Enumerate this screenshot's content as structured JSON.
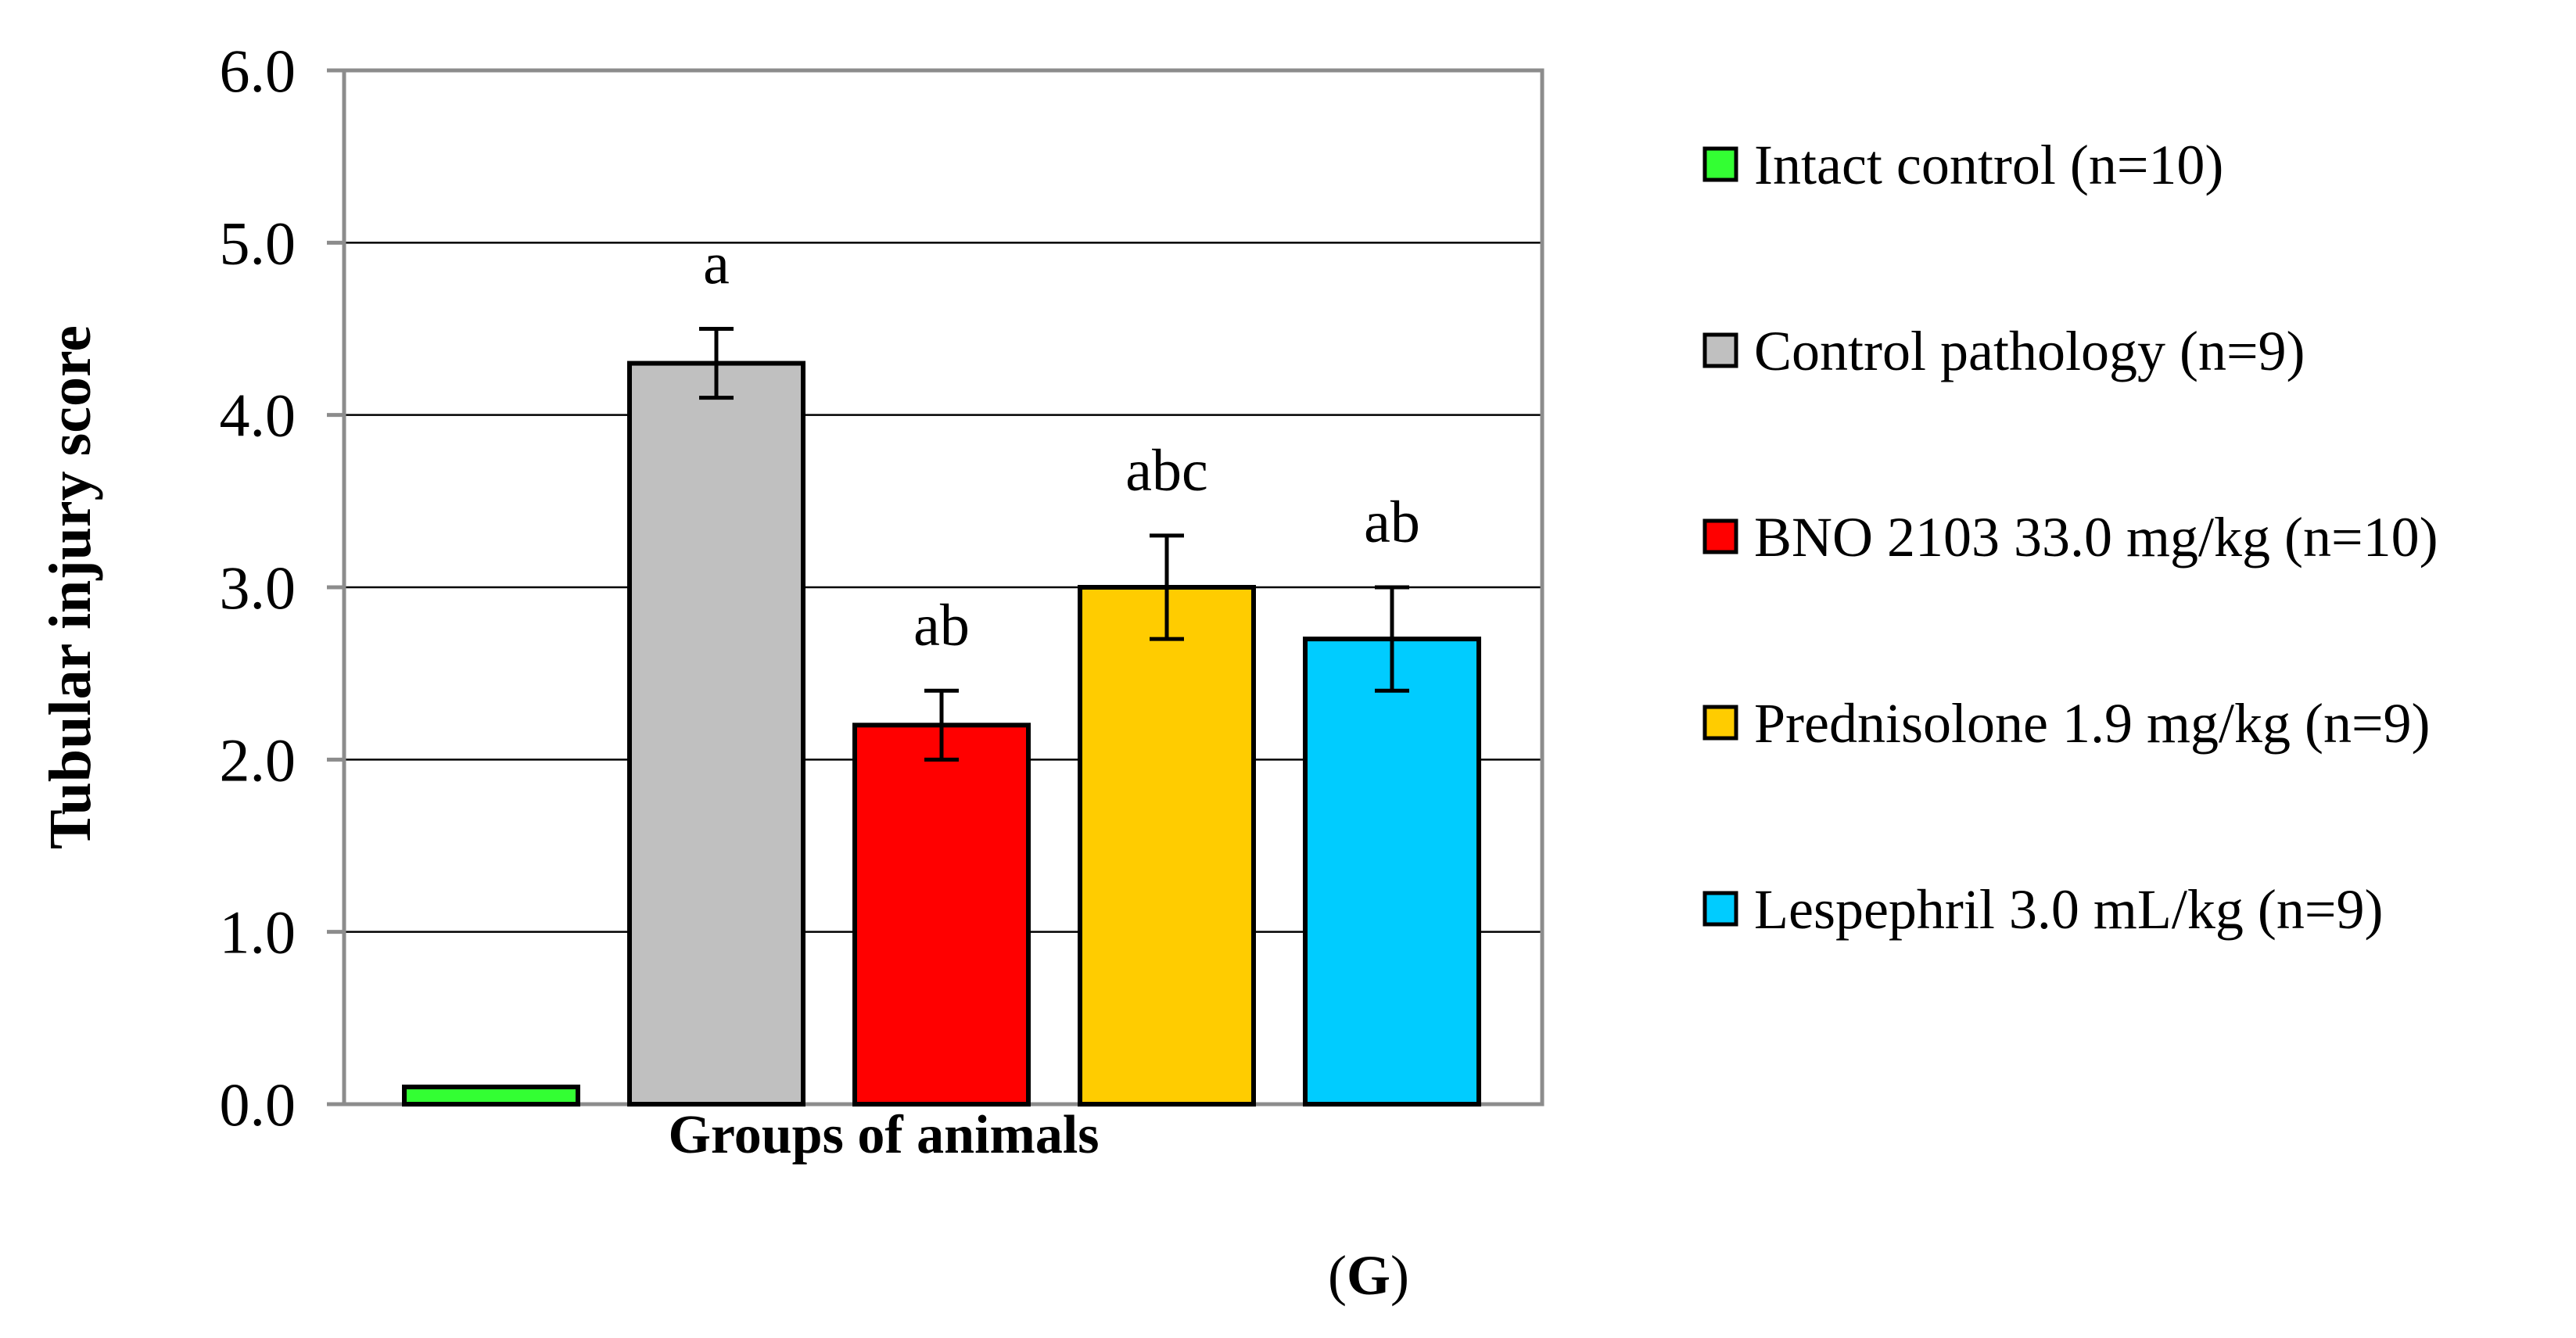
{
  "chart_data": {
    "type": "bar",
    "title": "",
    "xlabel": "Groups of animals",
    "ylabel": "Tubular injury score",
    "ylim": [
      0,
      6
    ],
    "yticks": [
      "0.0",
      "1.0",
      "2.0",
      "3.0",
      "4.0",
      "5.0",
      "6.0"
    ],
    "grid": true,
    "legend_position": "right",
    "series": [
      {
        "name": "Intact control (n=10)",
        "value": 0.1,
        "error": null,
        "annotation": "",
        "color": "#33ff33"
      },
      {
        "name": "Control pathology (n=9)",
        "value": 4.3,
        "error": 0.2,
        "annotation": "a",
        "color": "#c0c0c0"
      },
      {
        "name": "BNO 2103 33.0 mg/kg (n=10)",
        "value": 2.2,
        "error": 0.2,
        "annotation": "ab",
        "color": "#ff0000"
      },
      {
        "name": "Prednisolone 1.9 mg/kg (n=9)",
        "value": 3.0,
        "error": 0.3,
        "annotation": "abc",
        "color": "#ffcc00"
      },
      {
        "name": "Lespephril 3.0 mL/kg (n=9)",
        "value": 2.7,
        "error": 0.3,
        "annotation": "ab",
        "color": "#00ccff"
      }
    ]
  },
  "panel_label": "(G)"
}
